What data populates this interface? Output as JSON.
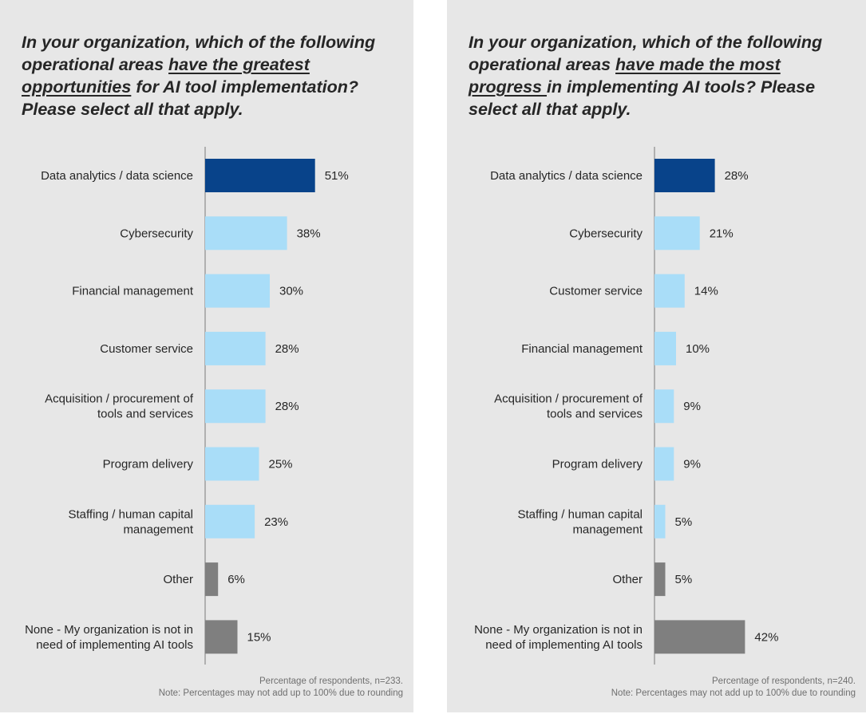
{
  "colors": {
    "panel_bg": "#e7e7e7",
    "highlight": "#08438a",
    "light": "#a9ddf8",
    "gray": "#7f7f7f",
    "text": "#262626",
    "note": "#6f6f6f"
  },
  "chart_data": [
    {
      "type": "bar",
      "orientation": "horizontal",
      "title_parts": [
        {
          "text": "In your organization, which of the following operational areas ",
          "underline": false
        },
        {
          "text": "have the greatest opportunities",
          "underline": true
        },
        {
          "text": " for AI tool implementation? Please select all that apply.",
          "underline": false
        }
      ],
      "categories": [
        "Data analytics / data science",
        "Cybersecurity",
        "Financial management",
        "Customer service",
        "Acquisition / procurement of|tools and services",
        "Program delivery",
        "Staffing / human capital|management",
        "Other",
        "None - My organization is not in|need of implementing AI tools"
      ],
      "values": [
        51,
        38,
        30,
        28,
        28,
        25,
        23,
        6,
        15
      ],
      "labels": [
        "51%",
        "38%",
        "30%",
        "28%",
        "28%",
        "25%",
        "23%",
        "6%",
        "15%"
      ],
      "bar_colors": [
        "highlight",
        "light",
        "light",
        "light",
        "light",
        "light",
        "light",
        "gray",
        "gray"
      ],
      "xlim": [
        0,
        100
      ],
      "note_lines": [
        "Percentage of respondents, n=233.",
        "Note: Percentages may not add up to 100% due to rounding"
      ]
    },
    {
      "type": "bar",
      "orientation": "horizontal",
      "title_parts": [
        {
          "text": "In your organization, which of the following operational areas ",
          "underline": false
        },
        {
          "text": "have made the most progress ",
          "underline": true
        },
        {
          "text": "in implementing AI tools? Please select all that apply.",
          "underline": false
        }
      ],
      "categories": [
        "Data analytics / data science",
        "Cybersecurity",
        "Customer service",
        "Financial management",
        "Acquisition / procurement of|tools and services",
        "Program delivery",
        "Staffing / human capital|management",
        "Other",
        "None - My organization is not in|need of implementing AI tools"
      ],
      "values": [
        28,
        21,
        14,
        10,
        9,
        9,
        5,
        5,
        42
      ],
      "labels": [
        "28%",
        "21%",
        "14%",
        "10%",
        "9%",
        "9%",
        "5%",
        "5%",
        "42%"
      ],
      "bar_colors": [
        "highlight",
        "light",
        "light",
        "light",
        "light",
        "light",
        "light",
        "gray",
        "gray"
      ],
      "xlim": [
        0,
        100
      ],
      "note_lines": [
        "Percentage of respondents, n=240.",
        "Note: Percentages may not add up to 100% due to rounding"
      ]
    }
  ]
}
